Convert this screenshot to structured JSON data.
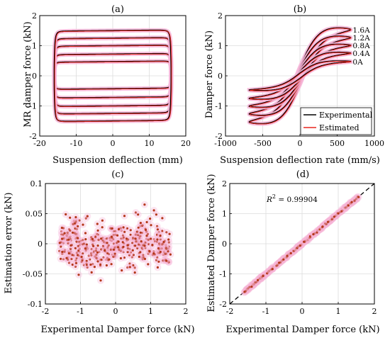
{
  "chart_data": [
    {
      "panel": "(a)",
      "type": "line",
      "xlabel": "Suspension deflection (mm)",
      "ylabel": "MR damper force (kN)",
      "xlim": [
        -20,
        20
      ],
      "ylim": [
        -2,
        2
      ],
      "xticks": [
        -20,
        -10,
        0,
        10,
        20
      ],
      "yticks": [
        -2,
        -1,
        0,
        1,
        2
      ],
      "grid": true,
      "colors": {
        "experimental": "#000000",
        "estimated": "#e8261e",
        "band": "#f6b5d8"
      },
      "loops": [
        {
          "force_amplitude": 0.45,
          "offset": 0.02
        },
        {
          "force_amplitude": 0.72,
          "offset": 0.0
        },
        {
          "force_amplitude": 1.0,
          "offset": 0.0
        },
        {
          "force_amplitude": 1.25,
          "offset": 0.0
        },
        {
          "force_amplitude": 1.5,
          "offset": 0.0
        }
      ],
      "deflection_amplitude": 16
    },
    {
      "panel": "(b)",
      "type": "line",
      "xlabel": "Suspension deflection rate (mm/s)",
      "ylabel": "Damper force (kN)",
      "xlim": [
        -1000,
        1000
      ],
      "ylim": [
        -2,
        2
      ],
      "xticks": [
        -1000,
        -500,
        0,
        500,
        1000
      ],
      "yticks": [
        -2,
        -1,
        0,
        1,
        2
      ],
      "grid": true,
      "legend": {
        "position": "bottom-right",
        "entries": [
          "Experimental",
          "Estimated"
        ]
      },
      "series_labels": [
        "1.6A",
        "1.2A",
        "0.8A",
        "0.4A",
        "0A"
      ],
      "series": [
        {
          "name": "1.6A",
          "force_amplitude": 1.55
        },
        {
          "name": "1.2A",
          "force_amplitude": 1.28
        },
        {
          "name": "0.8A",
          "force_amplitude": 1.02
        },
        {
          "name": "0.4A",
          "force_amplitude": 0.76
        },
        {
          "name": "0A",
          "force_amplitude": 0.48
        }
      ],
      "rate_amplitude": 680,
      "colors": {
        "experimental": "#000000",
        "estimated": "#e8261e",
        "band": "#f6b5d8"
      }
    },
    {
      "panel": "(c)",
      "type": "scatter",
      "xlabel": "Experimental Damper force (kN)",
      "ylabel": "Estimation error (kN)",
      "xlim": [
        -2,
        2
      ],
      "ylim": [
        -0.1,
        0.1
      ],
      "xticks": [
        -2,
        -1,
        0,
        1,
        2
      ],
      "yticks": [
        -0.1,
        -0.05,
        0,
        0.05,
        0.1
      ],
      "grid": true,
      "point_count": 420,
      "x_range": [
        -1.6,
        1.58
      ],
      "colors": {
        "point": "#b5371a",
        "band": "#f6b5d8"
      }
    },
    {
      "panel": "(d)",
      "type": "scatter",
      "xlabel": "Experimental Damper force (kN)",
      "ylabel": "Estimated Damper force (kN)",
      "xlim": [
        -2,
        2
      ],
      "ylim": [
        -2,
        2
      ],
      "xticks": [
        -2,
        -1,
        0,
        1,
        2
      ],
      "yticks": [
        -2,
        -1,
        0,
        1,
        2
      ],
      "grid": true,
      "annotation": {
        "lhs": "R",
        "sup": "2",
        "rhs": " = 0.99904"
      },
      "reference_line": "y = x",
      "point_count": 420,
      "x_range": [
        -1.6,
        1.58
      ],
      "colors": {
        "point": "#b5371a",
        "line": "#000000",
        "band": "#f6b5d8"
      }
    }
  ]
}
